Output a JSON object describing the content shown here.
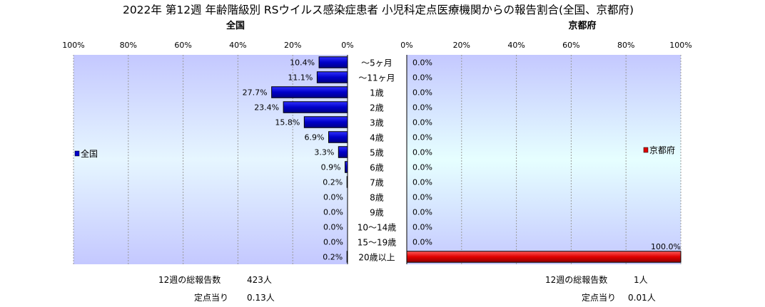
{
  "title": "2022年 第12週 年齢階級別 RSウイルス感染症患者 小児科定点医療機関からの報告割合(全国、京都府)",
  "chart_data": [
    {
      "type": "bar",
      "orientation": "horizontal",
      "direction": "right-to-left",
      "title": "全国",
      "categories": [
        "～5ヶ月",
        "～11ヶ月",
        "1歳",
        "2歳",
        "3歳",
        "4歳",
        "5歳",
        "6歳",
        "7歳",
        "8歳",
        "9歳",
        "10～14歳",
        "15～19歳",
        "20歳以上"
      ],
      "series": [
        {
          "name": "全国",
          "color": "#0000cc",
          "values": [
            10.4,
            11.1,
            27.7,
            23.4,
            15.8,
            6.9,
            3.3,
            0.9,
            0.2,
            0.0,
            0.0,
            0.0,
            0.0,
            0.2
          ]
        }
      ],
      "xlim": [
        0,
        100
      ],
      "ticks": [
        "100%",
        "80%",
        "60%",
        "40%",
        "20%",
        "0%"
      ],
      "legend_position": "left",
      "grid": true,
      "footer": [
        {
          "label": "12週の総報告数",
          "value": "423人"
        },
        {
          "label": "定点当り",
          "value": "0.13人"
        }
      ]
    },
    {
      "type": "bar",
      "orientation": "horizontal",
      "direction": "left-to-right",
      "title": "京都府",
      "categories": [
        "～5ヶ月",
        "～11ヶ月",
        "1歳",
        "2歳",
        "3歳",
        "4歳",
        "5歳",
        "6歳",
        "7歳",
        "8歳",
        "9歳",
        "10～14歳",
        "15～19歳",
        "20歳以上"
      ],
      "series": [
        {
          "name": "京都府",
          "color": "#dd0000",
          "values": [
            0.0,
            0.0,
            0.0,
            0.0,
            0.0,
            0.0,
            0.0,
            0.0,
            0.0,
            0.0,
            0.0,
            0.0,
            0.0,
            100.0
          ]
        }
      ],
      "xlim": [
        0,
        100
      ],
      "ticks": [
        "0%",
        "20%",
        "40%",
        "60%",
        "80%",
        "100%"
      ],
      "legend_position": "right",
      "grid": true,
      "footer": [
        {
          "label": "12週の総報告数",
          "value": "1人"
        },
        {
          "label": "定点当り",
          "value": "0.01人"
        }
      ]
    }
  ]
}
